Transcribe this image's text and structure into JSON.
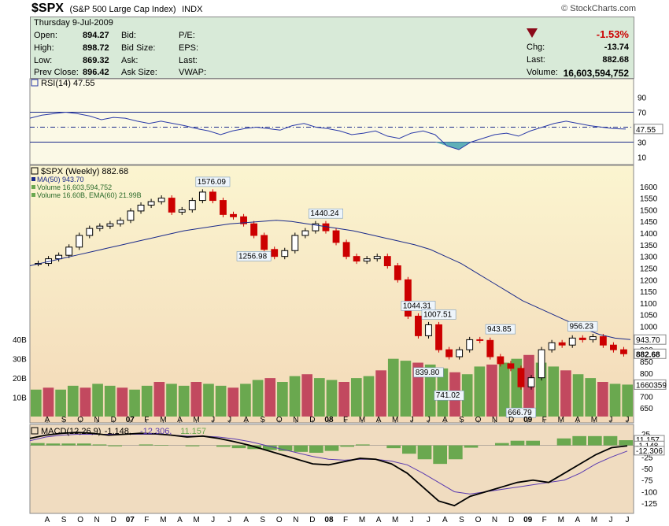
{
  "header": {
    "symbol": "$SPX",
    "name": "(S&P 500 Large Cap Index)",
    "exchange": "INDX",
    "brand": "© StockCharts.com"
  },
  "quote": {
    "date": "Thursday  9-Jul-2009",
    "open_label": "Open:",
    "open": "894.27",
    "high_label": "High:",
    "high": "898.72",
    "low_label": "Low:",
    "low": "869.32",
    "prev_label": "Prev Close:",
    "prev": "896.42",
    "bid_label": "Bid:",
    "bidsize_label": "Bid Size:",
    "ask_label": "Ask:",
    "asksize_label": "Ask Size:",
    "pe_label": "P/E:",
    "eps_label": "EPS:",
    "last_label2": "Last:",
    "vwap_label": "VWAP:",
    "chg_pct": "-1.53%",
    "chg_label": "Chg:",
    "chg": "-13.74",
    "last_label": "Last:",
    "last": "882.68",
    "volume_label": "Volume:",
    "volume": "16,603,594,752",
    "down_color": "#cc0000"
  },
  "chart_data": [
    {
      "type": "line",
      "legend": [
        "RSI(14) 47.55"
      ],
      "series": [
        {
          "name": "RSI(14)",
          "values": [
            62,
            66,
            68,
            70,
            68,
            65,
            60,
            63,
            62,
            58,
            55,
            58,
            55,
            52,
            48,
            45,
            40,
            45,
            48,
            50,
            48,
            46,
            52,
            55,
            50,
            48,
            45,
            40,
            42,
            45,
            38,
            35,
            42,
            45,
            40,
            25,
            20,
            30,
            35,
            40,
            42,
            38,
            45,
            50,
            55,
            58,
            55,
            52,
            50,
            48,
            47.55
          ]
        }
      ],
      "ylim": [
        0,
        100
      ],
      "ticks": [
        "90",
        "70",
        "50",
        "30",
        "10"
      ],
      "tick_values": [
        90,
        70,
        50,
        30,
        10
      ],
      "reference_lines": [
        70,
        30
      ],
      "last_value": "47.55",
      "colors": {
        "line": "#2a3aa8",
        "fill": "#5fb0b8"
      }
    },
    {
      "type": "bar",
      "title": "$SPX (Weekly) 882.68",
      "legend": [
        "MA(50) 943.70",
        "Volume 16,603,594,752",
        "Volume 16.60B, EMA(60) 21.99B"
      ],
      "x_labels": [
        "A",
        "S",
        "O",
        "N",
        "D",
        "07",
        "F",
        "M",
        "A",
        "M",
        "J",
        "J",
        "A",
        "S",
        "O",
        "N",
        "D",
        "08",
        "F",
        "M",
        "A",
        "M",
        "J",
        "J",
        "A",
        "S",
        "O",
        "N",
        "D",
        "09",
        "F",
        "M",
        "A",
        "M",
        "J",
        "J"
      ],
      "price": [
        1270,
        1290,
        1305,
        1340,
        1390,
        1420,
        1430,
        1440,
        1455,
        1495,
        1520,
        1535,
        1550,
        1490,
        1500,
        1540,
        1576,
        1540,
        1480,
        1470,
        1440,
        1390,
        1330,
        1300,
        1325,
        1390,
        1410,
        1440,
        1410,
        1360,
        1300,
        1280,
        1290,
        1300,
        1260,
        1200,
        1044,
        960,
        1007,
        900,
        870,
        900,
        943,
        940,
        870,
        840,
        820,
        741,
        780,
        900,
        930,
        920,
        950,
        943,
        956,
        920,
        900,
        882.68
      ],
      "ma": [
        1260,
        1275,
        1290,
        1305,
        1320,
        1335,
        1350,
        1365,
        1380,
        1395,
        1410,
        1420,
        1430,
        1440,
        1445,
        1450,
        1455,
        1450,
        1440,
        1430,
        1420,
        1410,
        1395,
        1380,
        1365,
        1350,
        1330,
        1300,
        1270,
        1230,
        1190,
        1150,
        1110,
        1080,
        1050,
        1020,
        990,
        965,
        950,
        943.7
      ],
      "volume_b": [
        14,
        15,
        14,
        16,
        15,
        17,
        16,
        15,
        14,
        16,
        18,
        17,
        16,
        18,
        17,
        16,
        15,
        17,
        19,
        20,
        18,
        21,
        22,
        20,
        19,
        18,
        20,
        21,
        24,
        30,
        29,
        28,
        27,
        25,
        23,
        22,
        26,
        27,
        28,
        30,
        32,
        28,
        26,
        24,
        22,
        20,
        18,
        17,
        16.6
      ],
      "ylim": [
        600,
        1650
      ],
      "ticks": [
        "1600",
        "1550",
        "1500",
        "1450",
        "1400",
        "1350",
        "1300",
        "1250",
        "1200",
        "1150",
        "1100",
        "1050",
        "1000",
        "950",
        "900",
        "850",
        "800",
        "750",
        "700",
        "650"
      ],
      "tick_values": [
        1600,
        1550,
        1500,
        1450,
        1400,
        1350,
        1300,
        1250,
        1200,
        1150,
        1100,
        1050,
        1000,
        950,
        900,
        850,
        800,
        750,
        700,
        650
      ],
      "volume_ticks": [
        "40B",
        "30B",
        "20B",
        "10B"
      ],
      "volume_tick_values": [
        40,
        30,
        20,
        10
      ],
      "annotations": [
        {
          "text": "1576.09",
          "x": 17,
          "y": 1576
        },
        {
          "text": "1440.24",
          "x": 28,
          "y": 1440
        },
        {
          "text": "1256.98",
          "x": 21,
          "y": 1257
        },
        {
          "text": "1044.31",
          "x": 37,
          "y": 1044
        },
        {
          "text": "1007.51",
          "x": 39,
          "y": 1007
        },
        {
          "text": "943.85",
          "x": 45,
          "y": 944
        },
        {
          "text": "839.80",
          "x": 38,
          "y": 840
        },
        {
          "text": "741.02",
          "x": 40,
          "y": 741
        },
        {
          "text": "666.79",
          "x": 47,
          "y": 667
        },
        {
          "text": "956.23",
          "x": 53,
          "y": 956
        }
      ],
      "last_labels": [
        "943.70",
        "882.68",
        "1660359"
      ],
      "colors": {
        "up": "#000000",
        "down": "#cc0000",
        "ma": "#1a2a8a",
        "vol_up": "#6aa84f",
        "vol_down": "#c2495f",
        "bg_top": "#fbf5d0",
        "bg_bottom": "#f3d9b8"
      }
    },
    {
      "type": "line",
      "legend": [
        "MACD(12,26,9)",
        "-1.148,",
        "-12.306,",
        "11.157"
      ],
      "series": [
        {
          "name": "MACD(12,26,9)",
          "values": [
            15,
            22,
            26,
            28,
            26,
            22,
            24,
            26,
            25,
            22,
            18,
            20,
            15,
            8,
            0,
            -10,
            -20,
            -30,
            -40,
            -42,
            -35,
            -28,
            -30,
            -40,
            -60,
            -90,
            -120,
            -130,
            -110,
            -100,
            -90,
            -80,
            -75,
            -80,
            -60,
            -40,
            -20,
            -5,
            -1.148
          ]
        },
        {
          "name": "signal",
          "values": [
            10,
            18,
            22,
            24,
            24,
            24,
            24,
            24,
            24,
            22,
            20,
            20,
            18,
            14,
            8,
            0,
            -8,
            -16,
            -24,
            -30,
            -32,
            -30,
            -30,
            -34,
            -42,
            -60,
            -80,
            -100,
            -105,
            -100,
            -95,
            -90,
            -85,
            -80,
            -75,
            -60,
            -40,
            -25,
            -12.306
          ]
        }
      ],
      "histogram": [
        5,
        4,
        4,
        4,
        2,
        -2,
        0,
        2,
        1,
        0,
        -2,
        0,
        -3,
        -6,
        -8,
        -10,
        -12,
        -14,
        -16,
        -12,
        -3,
        2,
        0,
        -6,
        -18,
        -30,
        -40,
        -30,
        -5,
        0,
        5,
        10,
        10,
        0,
        15,
        20,
        20,
        20,
        11.157
      ],
      "ylim": [
        -140,
        35
      ],
      "ticks": [
        "25",
        "0",
        "-25",
        "-50",
        "-75",
        "-100",
        "-125"
      ],
      "tick_values": [
        25,
        0,
        -25,
        -50,
        -75,
        -100,
        -125
      ],
      "last_labels": [
        "11.157",
        "-1.148",
        "-12.306"
      ],
      "x_labels": [
        "A",
        "S",
        "O",
        "N",
        "D",
        "07",
        "F",
        "M",
        "A",
        "M",
        "J",
        "J",
        "A",
        "S",
        "O",
        "N",
        "D",
        "08",
        "F",
        "M",
        "A",
        "M",
        "J",
        "J",
        "A",
        "S",
        "O",
        "N",
        "D",
        "09",
        "F",
        "M",
        "A",
        "M",
        "J",
        "J"
      ],
      "colors": {
        "macd": "#000000",
        "signal": "#5a3ab0",
        "hist_up": "#6aa84f",
        "hist_down": "#6aa84f",
        "bg": "#f0dcc0"
      }
    }
  ]
}
